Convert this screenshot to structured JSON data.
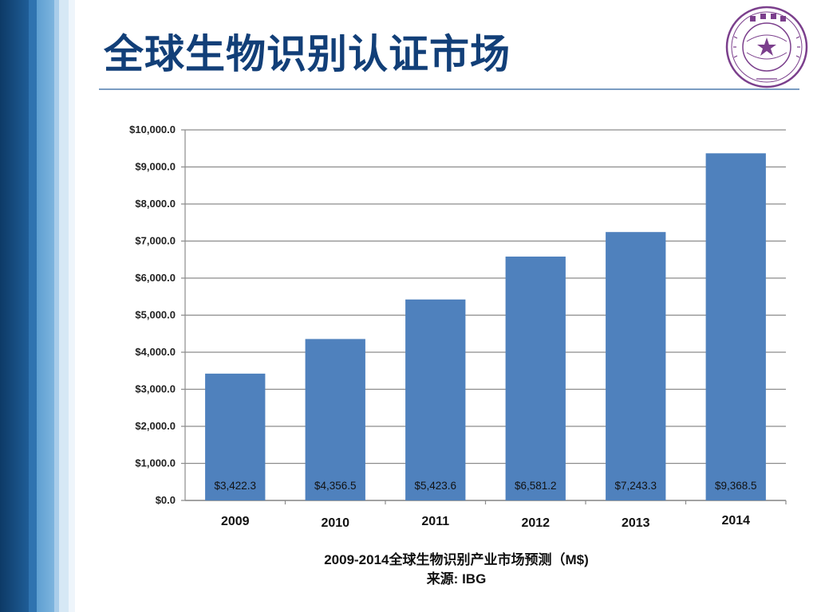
{
  "slide": {
    "title": "全球生物识别认证市场"
  },
  "chart_data": {
    "type": "bar",
    "categories": [
      "2009",
      "2010",
      "2011",
      "2012",
      "2013",
      "2014"
    ],
    "values": [
      3422.3,
      4356.5,
      5423.6,
      6581.2,
      7243.3,
      9368.5
    ],
    "data_labels": [
      "$3,422.3",
      "$4,356.5",
      "$5,423.6",
      "$6,581.2",
      "$7,243.3",
      "$9,368.5"
    ],
    "y_ticks": [
      "$0.0",
      "$1,000.0",
      "$2,000.0",
      "$3,000.0",
      "$4,000.0",
      "$5,000.0",
      "$6,000.0",
      "$7,000.0",
      "$8,000.0",
      "$9,000.0",
      "$10,000.0"
    ],
    "ylim": [
      0,
      10000
    ],
    "grid": true,
    "bar_color": "#4f81bd",
    "caption": "2009-2014全球生物识别产业市场预测（M$)",
    "source": "来源: IBG"
  },
  "logo": {
    "name": "tsinghua-university-seal",
    "color": "#7b3f8c"
  }
}
